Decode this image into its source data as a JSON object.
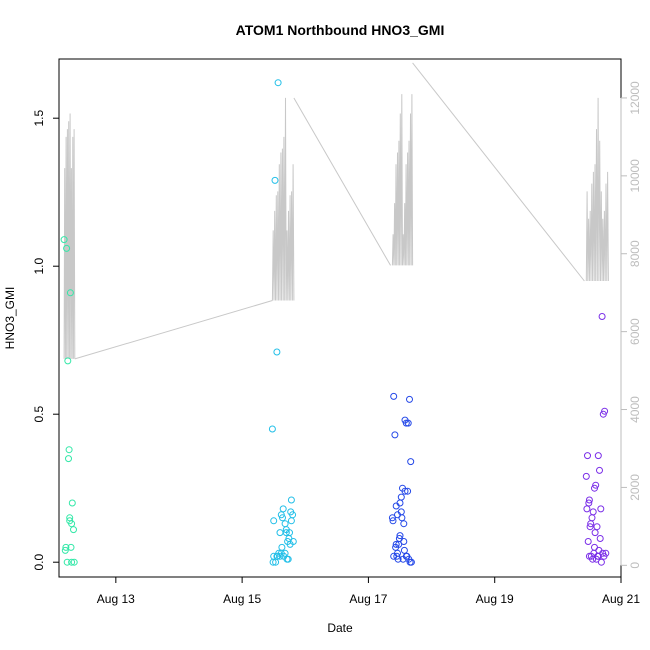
{
  "chart_data": {
    "type": "scatter",
    "title": "ATOM1 Northbound HNO3_GMI",
    "xlabel": "Date",
    "ylabel": "HNO3_GMI",
    "x_range_days": [
      12.1,
      21.0
    ],
    "ylim": [
      -0.05,
      1.7
    ],
    "y_ticks": [
      0.0,
      0.5,
      1.0,
      1.5
    ],
    "y_tick_labels": [
      "0.0",
      "0.5",
      "1.0",
      "1.5"
    ],
    "x_ticks": [
      13,
      15,
      17,
      19,
      21
    ],
    "x_tick_labels": [
      "Aug 13",
      "Aug 15",
      "Aug 17",
      "Aug 19",
      "Aug 21"
    ],
    "secondary_axis": {
      "range": [
        -300,
        13000
      ],
      "ticks": [
        0,
        2000,
        4000,
        6000,
        8000,
        10000,
        12000
      ],
      "tick_labels": [
        "0",
        "2000",
        "4000",
        "6000",
        "8000",
        "10000",
        "12000"
      ],
      "color": "#bdbdbd"
    },
    "grid": false,
    "altitude_trace": {
      "color": "#c8c8c8",
      "flights": [
        {
          "start": 12.18,
          "end": 12.35,
          "n": 8,
          "base": 5300,
          "peaks": [
            10200,
            11000,
            11200,
            11400,
            11600
          ]
        },
        {
          "start": 15.48,
          "end": 15.82,
          "n": 14,
          "base": 6800,
          "peaks": [
            8600,
            9100,
            9500,
            9600,
            10300,
            10600,
            10700,
            11000,
            12000
          ]
        },
        {
          "start": 17.38,
          "end": 17.7,
          "n": 14,
          "base": 7700,
          "peaks": [
            8500,
            9300,
            10300,
            10600,
            10900,
            11600,
            12100
          ]
        },
        {
          "start": 20.45,
          "end": 20.8,
          "n": 14,
          "base": 7300,
          "peaks": [
            9600,
            8900,
            9100,
            9800,
            10100,
            10300,
            11200,
            12000,
            10900
          ]
        }
      ],
      "transits": [
        {
          "x": [
            12.35,
            15.48
          ],
          "y": [
            5300,
            6800
          ]
        },
        {
          "x": [
            15.82,
            17.35
          ],
          "y": [
            12000,
            7700
          ]
        },
        {
          "x": [
            17.7,
            20.42
          ],
          "y": [
            12900,
            7300
          ]
        }
      ]
    },
    "series": [
      {
        "color": "#33e8a8",
        "x": [
          12.18,
          12.2,
          12.22,
          12.24,
          12.25,
          12.26,
          12.27,
          12.28,
          12.29,
          12.3,
          12.31,
          12.33,
          12.34,
          12.21,
          12.23,
          12.27,
          12.3
        ],
        "y": [
          1.09,
          0.04,
          1.06,
          0.68,
          0.35,
          0.38,
          0.14,
          0.91,
          0.05,
          0.13,
          0.2,
          0.11,
          0.0,
          0.05,
          0.0,
          0.15,
          0.0
        ]
      },
      {
        "color": "#22bfe8",
        "x": [
          15.48,
          15.5,
          15.52,
          15.55,
          15.57,
          15.6,
          15.62,
          15.65,
          15.68,
          15.7,
          15.72,
          15.75,
          15.78,
          15.8,
          15.55,
          15.58,
          15.6,
          15.63,
          15.66,
          15.7,
          15.73,
          15.76,
          15.78,
          15.5,
          15.53,
          15.62,
          15.68,
          15.74,
          15.77,
          15.81,
          15.49,
          15.56,
          15.64,
          15.71
        ],
        "y": [
          0.45,
          0.14,
          1.29,
          0.71,
          1.62,
          0.02,
          0.16,
          0.18,
          0.03,
          0.11,
          0.07,
          0.1,
          0.21,
          0.16,
          0.02,
          0.03,
          0.1,
          0.05,
          0.02,
          0.1,
          0.01,
          0.06,
          0.14,
          0.02,
          0.0,
          0.03,
          0.13,
          0.08,
          0.17,
          0.07,
          0.0,
          0.02,
          0.15,
          0.01
        ]
      },
      {
        "color": "#2448e8",
        "x": [
          17.38,
          17.4,
          17.42,
          17.44,
          17.46,
          17.48,
          17.5,
          17.52,
          17.54,
          17.56,
          17.58,
          17.6,
          17.62,
          17.65,
          17.67,
          17.4,
          17.43,
          17.45,
          17.47,
          17.5,
          17.53,
          17.55,
          17.57,
          17.6,
          17.63,
          17.66,
          17.39,
          17.44,
          17.49,
          17.52,
          17.58,
          17.61,
          17.64,
          17.68,
          17.46,
          17.56
        ],
        "y": [
          0.15,
          0.56,
          0.43,
          0.19,
          0.16,
          0.06,
          0.2,
          0.17,
          0.25,
          0.13,
          0.48,
          0.47,
          0.24,
          0.55,
          0.34,
          0.02,
          0.05,
          0.02,
          0.01,
          0.09,
          0.15,
          0.01,
          0.04,
          0.02,
          0.47,
          0.0,
          0.14,
          0.06,
          0.08,
          0.22,
          0.24,
          0.02,
          0.01,
          0.0,
          0.03,
          0.07
        ]
      },
      {
        "color": "#7a2ee8",
        "x": [
          20.45,
          20.47,
          20.49,
          20.5,
          20.52,
          20.54,
          20.56,
          20.58,
          20.6,
          20.62,
          20.64,
          20.66,
          20.68,
          20.7,
          20.72,
          20.74,
          20.48,
          20.51,
          20.53,
          20.55,
          20.57,
          20.59,
          20.61,
          20.63,
          20.65,
          20.67,
          20.69,
          20.71,
          20.73,
          20.46,
          20.5,
          20.58,
          20.64,
          20.76
        ],
        "y": [
          0.29,
          0.36,
          0.2,
          0.21,
          0.13,
          0.15,
          0.17,
          0.25,
          0.26,
          0.12,
          0.36,
          0.31,
          0.18,
          0.83,
          0.5,
          0.51,
          0.07,
          0.12,
          0.02,
          0.01,
          0.03,
          0.1,
          0.01,
          0.02,
          0.04,
          0.08,
          0.0,
          0.03,
          0.02,
          0.18,
          0.02,
          0.05,
          0.02,
          0.03
        ]
      }
    ]
  }
}
